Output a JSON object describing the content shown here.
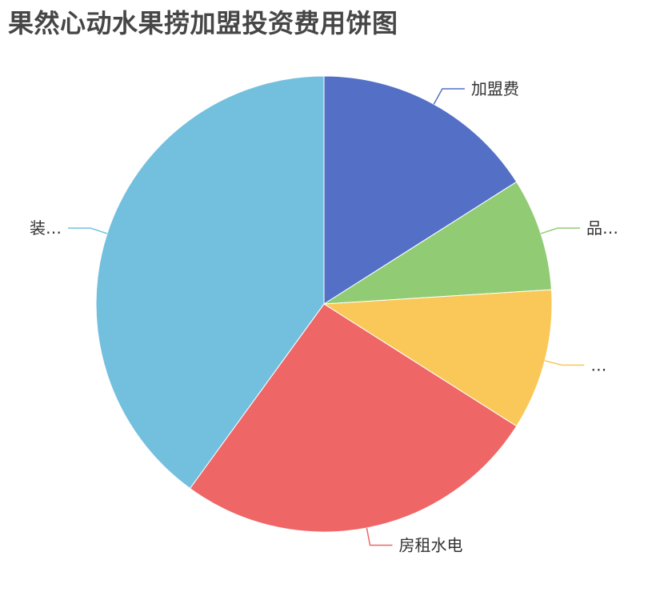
{
  "chart_data": {
    "type": "pie",
    "title": "果然心动水果捞加盟投资费用饼图",
    "slices": [
      {
        "name": "加盟费",
        "label": "加盟费",
        "value": 16,
        "color": "#5470c6"
      },
      {
        "name": "品…",
        "label": "品…",
        "value": 8,
        "color": "#91cc75"
      },
      {
        "name": "…",
        "label": "…",
        "value": 10,
        "color": "#fac858"
      },
      {
        "name": "房租水电",
        "label": "房租水电",
        "value": 26,
        "color": "#ee6666"
      },
      {
        "name": "装…",
        "label": "装…",
        "value": 40,
        "color": "#73c0de"
      }
    ],
    "legend": "none"
  }
}
